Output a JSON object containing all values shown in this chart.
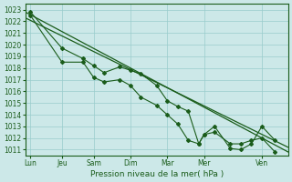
{
  "xlabel": "Pression niveau de la mer( hPa )",
  "ylim": [
    1010.5,
    1023.5
  ],
  "yticks": [
    1011,
    1012,
    1013,
    1014,
    1015,
    1016,
    1017,
    1018,
    1019,
    1020,
    1021,
    1022,
    1023
  ],
  "bg_color": "#cce8e8",
  "grid_color": "#99cccc",
  "line_color": "#1a5c1a",
  "xlim": [
    0,
    100
  ],
  "xtick_positions": [
    2,
    14,
    26,
    40,
    54,
    68,
    90
  ],
  "xtick_labels": [
    "Lun",
    "Jeu",
    "Sam",
    "Dim",
    "Mar",
    "Mer",
    "Ven"
  ],
  "trend1": {
    "x": [
      0,
      100
    ],
    "y": [
      1022.8,
      1010.8
    ]
  },
  "trend2": {
    "x": [
      0,
      100
    ],
    "y": [
      1022.3,
      1011.2
    ]
  },
  "line1_x": [
    2,
    14,
    22,
    26,
    30,
    36,
    40,
    44,
    50,
    54,
    58,
    62,
    66,
    68,
    72,
    78,
    82,
    86,
    90,
    95
  ],
  "line1_y": [
    1022.8,
    1019.7,
    1018.8,
    1018.2,
    1017.6,
    1018.1,
    1017.8,
    1017.5,
    1016.5,
    1015.2,
    1014.7,
    1014.3,
    1011.5,
    1012.3,
    1013.0,
    1011.1,
    1011.0,
    1011.5,
    1013.0,
    1011.8
  ],
  "line2_x": [
    2,
    14,
    22,
    26,
    30,
    36,
    40,
    44,
    50,
    54,
    58,
    62,
    66,
    68,
    72,
    78,
    82,
    86,
    90,
    95
  ],
  "line2_y": [
    1022.5,
    1018.5,
    1018.5,
    1017.2,
    1016.8,
    1017.0,
    1016.5,
    1015.5,
    1014.8,
    1014.0,
    1013.2,
    1011.8,
    1011.5,
    1012.3,
    1012.5,
    1011.5,
    1011.5,
    1011.8,
    1012.0,
    1010.8
  ]
}
